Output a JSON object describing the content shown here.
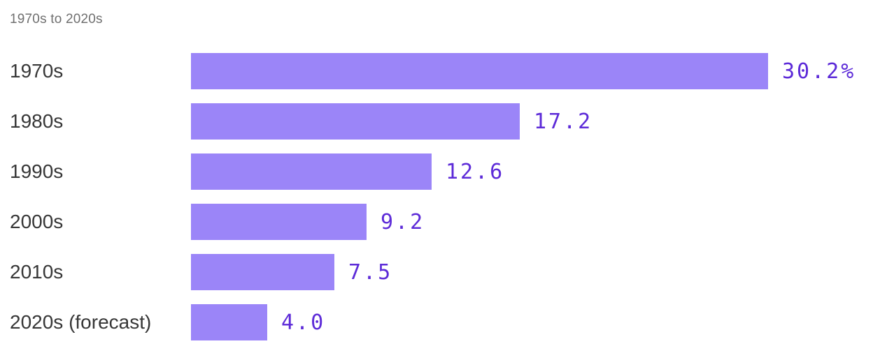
{
  "chart_data": {
    "type": "bar",
    "orientation": "horizontal",
    "title": "1970s to 2020s",
    "categories": [
      "1970s",
      "1980s",
      "1990s",
      "2000s",
      "2010s",
      "2020s (forecast)"
    ],
    "values": [
      30.2,
      17.2,
      12.6,
      9.2,
      7.5,
      4.0
    ],
    "value_labels": [
      "30.2%",
      "17.2",
      "12.6",
      "9.2",
      "7.5",
      "4.0"
    ],
    "unit": "%",
    "xlim": [
      0,
      30.2
    ],
    "grid": false,
    "legend": "none",
    "axis_ticks": "none"
  },
  "colors": {
    "bar": "#9b85f8",
    "value_text": "#5d2bd8",
    "category_text": "#373737",
    "title_text": "#6f6f6f",
    "background": "#ffffff"
  }
}
